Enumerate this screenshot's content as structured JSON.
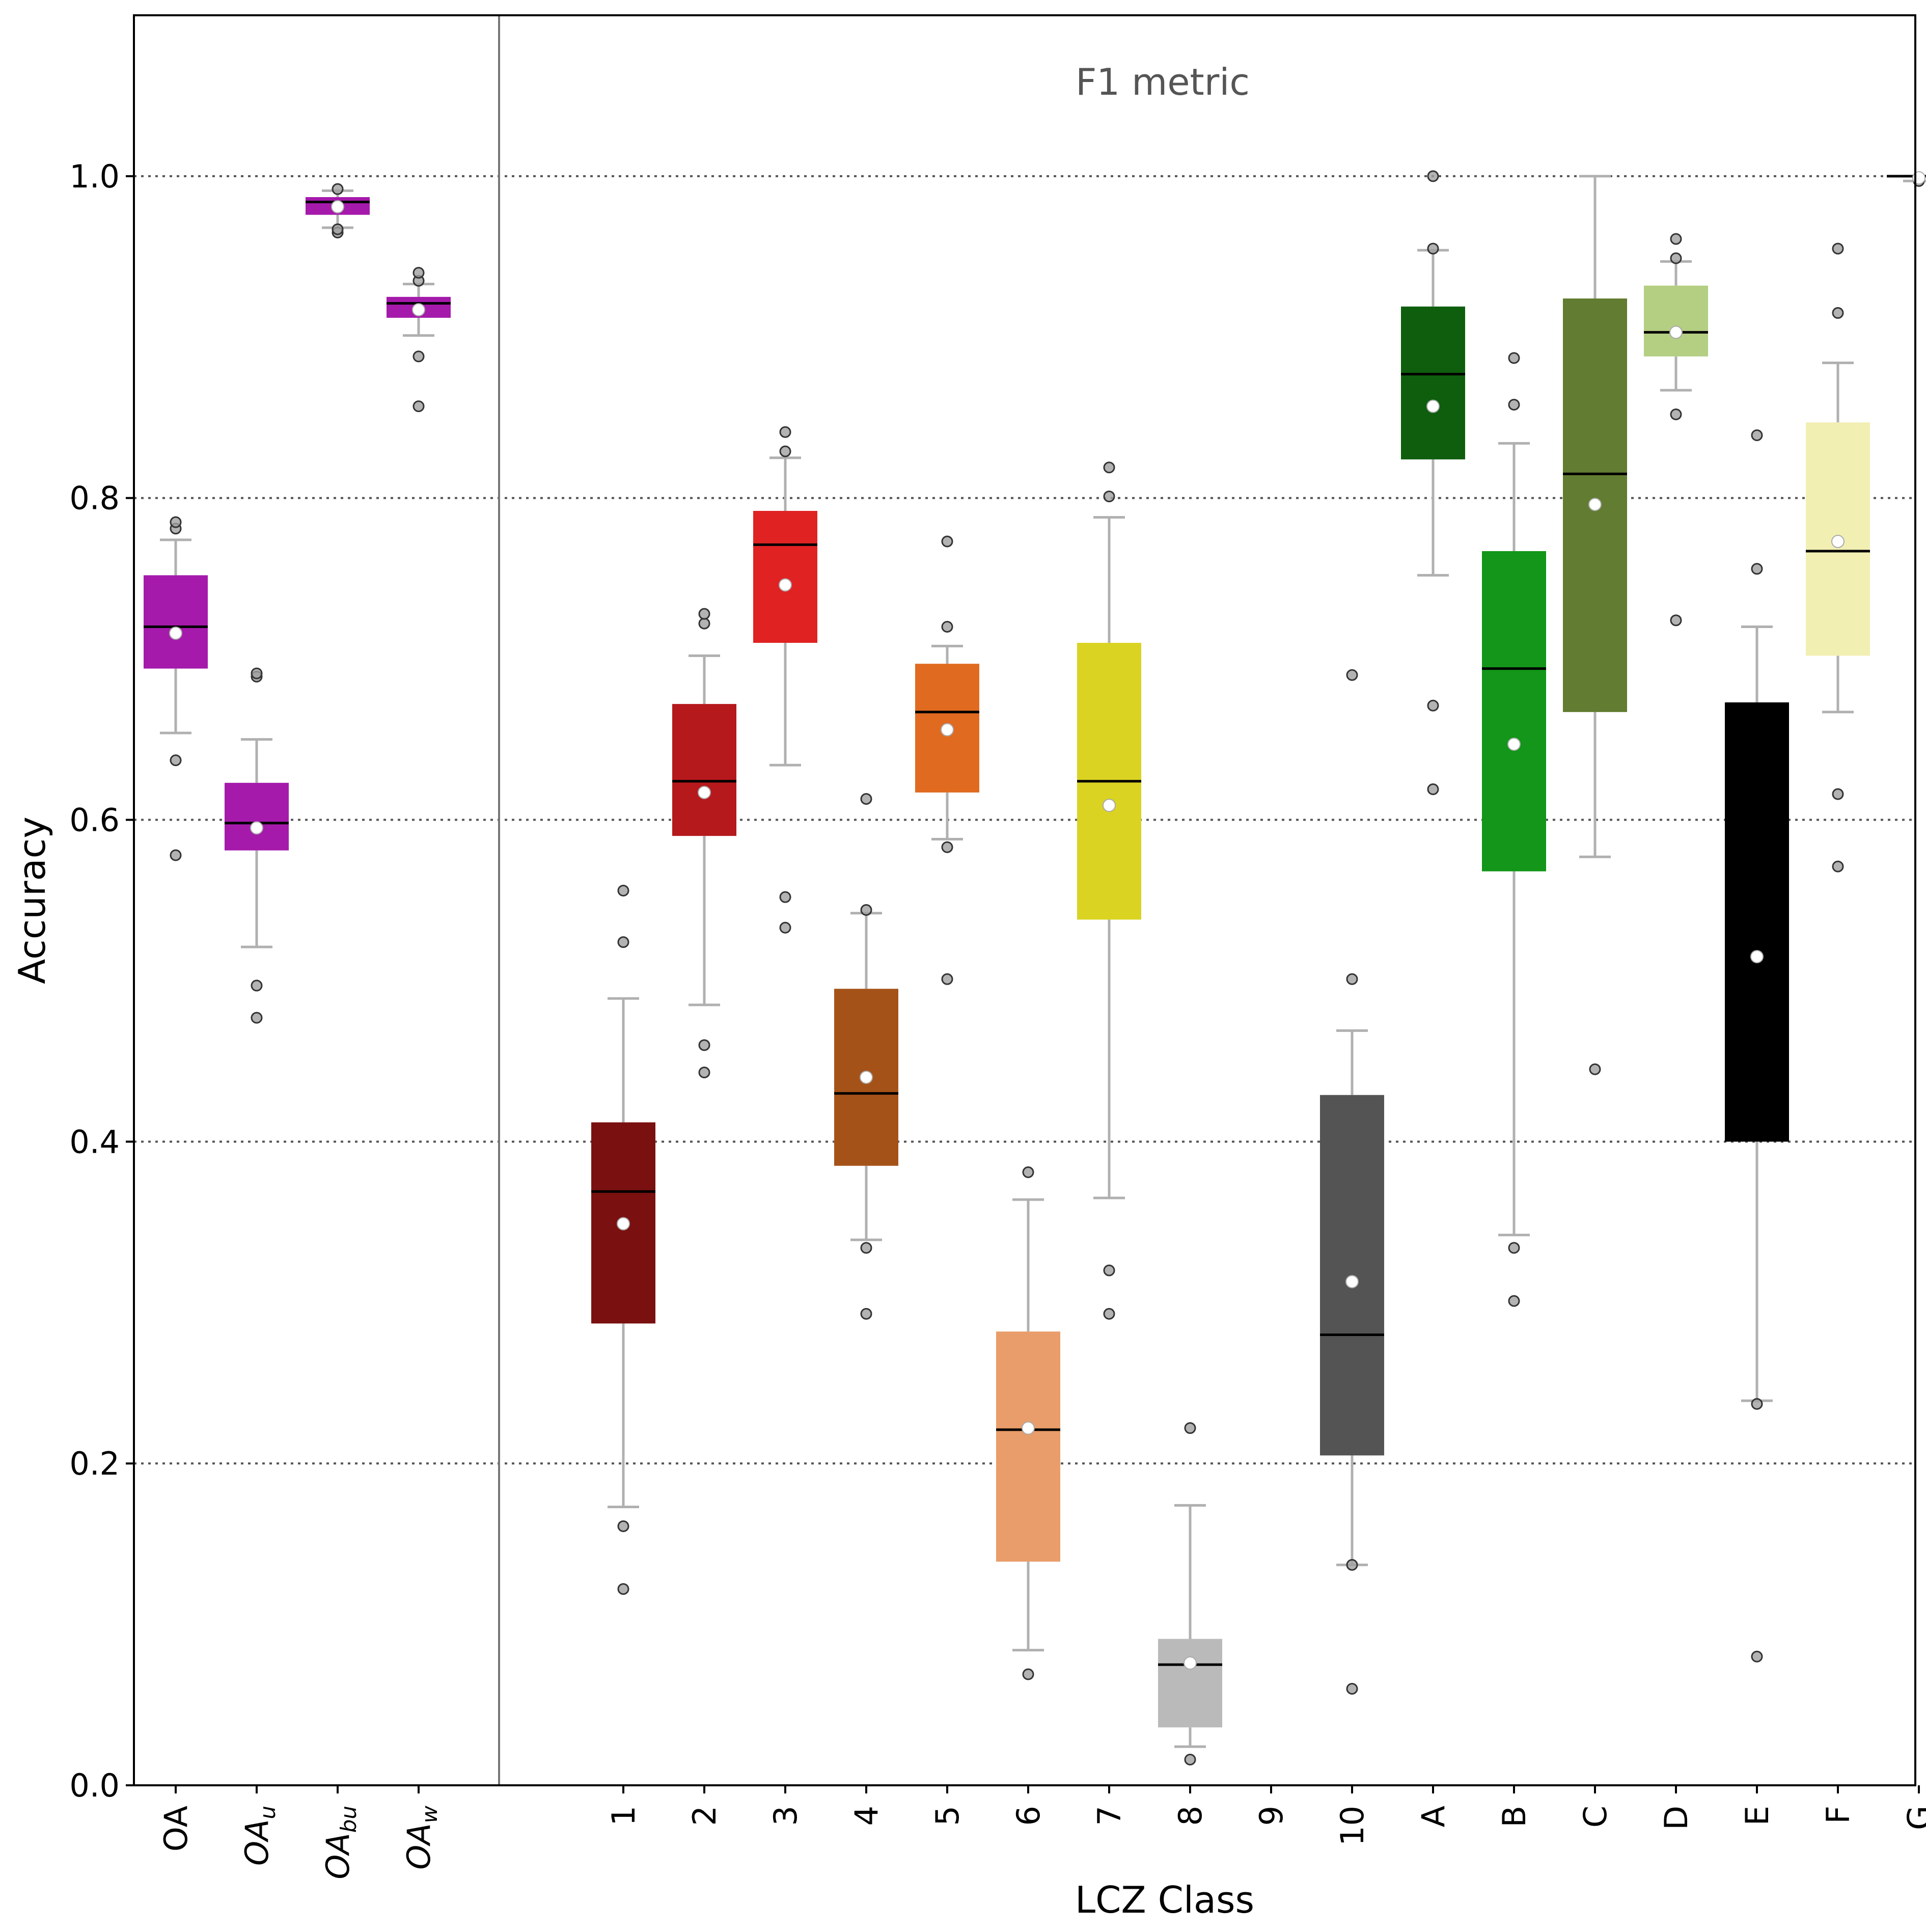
{
  "chart_data": {
    "type": "box",
    "xlabel": "LCZ Class",
    "ylabel": "Accuracy",
    "annotation": "F1 metric",
    "ylim": [
      0,
      1.1
    ],
    "yticks": [
      0.0,
      0.2,
      0.4,
      0.6,
      0.8,
      1.0
    ],
    "ytick_labels": [
      "0.0",
      "0.2",
      "0.4",
      "0.6",
      "0.8",
      "1.0"
    ],
    "grid": "horizontal dotted",
    "groups": [
      {
        "label": "OA",
        "sub": "",
        "color": "#a51aab",
        "q1": 0.694,
        "median": 0.72,
        "q3": 0.752,
        "whisker_low": 0.654,
        "whisker_high": 0.774,
        "mean": 0.716,
        "outliers": [
          0.578,
          0.637,
          0.781,
          0.785
        ]
      },
      {
        "label": "OA",
        "sub": "u",
        "color": "#a51aab",
        "q1": 0.581,
        "median": 0.598,
        "q3": 0.623,
        "whisker_low": 0.521,
        "whisker_high": 0.65,
        "mean": 0.595,
        "outliers": [
          0.477,
          0.497,
          0.689,
          0.691
        ]
      },
      {
        "label": "OA",
        "sub": "bu",
        "color": "#a51aab",
        "q1": 0.976,
        "median": 0.984,
        "q3": 0.987,
        "whisker_low": 0.968,
        "whisker_high": 0.991,
        "mean": 0.981,
        "outliers": [
          0.965,
          0.967,
          0.992
        ]
      },
      {
        "label": "OA",
        "sub": "w",
        "color": "#a51aab",
        "q1": 0.912,
        "median": 0.921,
        "q3": 0.925,
        "whisker_low": 0.901,
        "whisker_high": 0.933,
        "mean": 0.917,
        "outliers": [
          0.857,
          0.888,
          0.935,
          0.94
        ]
      },
      {
        "label": "1",
        "color": "#7a1010",
        "q1": 0.287,
        "median": 0.369,
        "q3": 0.412,
        "whisker_low": 0.173,
        "whisker_high": 0.489,
        "mean": 0.349,
        "outliers": [
          0.122,
          0.161,
          0.524,
          0.556
        ]
      },
      {
        "label": "2",
        "color": "#b5191c",
        "q1": 0.59,
        "median": 0.624,
        "q3": 0.672,
        "whisker_low": 0.485,
        "whisker_high": 0.702,
        "mean": 0.617,
        "outliers": [
          0.443,
          0.46,
          0.722,
          0.728
        ]
      },
      {
        "label": "3",
        "color": "#e02223",
        "q1": 0.71,
        "median": 0.771,
        "q3": 0.792,
        "whisker_low": 0.634,
        "whisker_high": 0.825,
        "mean": 0.746,
        "outliers": [
          0.533,
          0.552,
          0.829,
          0.841
        ]
      },
      {
        "label": "4",
        "color": "#a55219",
        "q1": 0.385,
        "median": 0.43,
        "q3": 0.495,
        "whisker_low": 0.339,
        "whisker_high": 0.542,
        "mean": 0.44,
        "outliers": [
          0.293,
          0.334,
          0.544,
          0.613
        ]
      },
      {
        "label": "5",
        "color": "#e06b20",
        "q1": 0.617,
        "median": 0.667,
        "q3": 0.697,
        "whisker_low": 0.588,
        "whisker_high": 0.708,
        "mean": 0.656,
        "outliers": [
          0.501,
          0.583,
          0.72,
          0.773
        ]
      },
      {
        "label": "6",
        "color": "#e99d6a",
        "q1": 0.139,
        "median": 0.221,
        "q3": 0.282,
        "whisker_low": 0.084,
        "whisker_high": 0.364,
        "mean": 0.222,
        "outliers": [
          0.069,
          0.381
        ]
      },
      {
        "label": "7",
        "color": "#dad322",
        "q1": 0.538,
        "median": 0.624,
        "q3": 0.71,
        "whisker_low": 0.365,
        "whisker_high": 0.788,
        "mean": 0.609,
        "outliers": [
          0.293,
          0.32,
          0.801,
          0.819
        ]
      },
      {
        "label": "8",
        "color": "#bababa",
        "q1": 0.036,
        "median": 0.075,
        "q3": 0.091,
        "whisker_low": 0.024,
        "whisker_high": 0.174,
        "mean": 0.076,
        "outliers": [
          0.016,
          0.222
        ]
      },
      {
        "label": "9",
        "color": "#666666",
        "q1": null,
        "median": null,
        "q3": null,
        "whisker_low": null,
        "whisker_high": null,
        "mean": null,
        "outliers": []
      },
      {
        "label": "10",
        "color": "#545454",
        "q1": 0.205,
        "median": 0.28,
        "q3": 0.429,
        "whisker_low": 0.137,
        "whisker_high": 0.469,
        "mean": 0.313,
        "outliers": [
          0.06,
          0.137,
          0.501,
          0.69
        ]
      },
      {
        "label": "A",
        "color": "#0e5e0e",
        "q1": 0.824,
        "median": 0.877,
        "q3": 0.919,
        "whisker_low": 0.752,
        "whisker_high": 0.954,
        "mean": 0.857,
        "outliers": [
          0.619,
          0.671,
          0.955,
          1.0
        ]
      },
      {
        "label": "B",
        "color": "#139619",
        "q1": 0.568,
        "median": 0.694,
        "q3": 0.767,
        "whisker_low": 0.342,
        "whisker_high": 0.834,
        "mean": 0.647,
        "outliers": [
          0.301,
          0.334,
          0.858,
          0.887
        ]
      },
      {
        "label": "C",
        "color": "#627c32",
        "q1": 0.667,
        "median": 0.815,
        "q3": 0.924,
        "whisker_low": 0.577,
        "whisker_high": 1.0,
        "mean": 0.796,
        "outliers": [
          0.445
        ]
      },
      {
        "label": "D",
        "color": "#b4ce82",
        "q1": 0.888,
        "median": 0.903,
        "q3": 0.932,
        "whisker_low": 0.867,
        "whisker_high": 0.947,
        "mean": 0.903,
        "outliers": [
          0.724,
          0.852,
          0.949,
          0.961
        ]
      },
      {
        "label": "E",
        "color": "#000000",
        "q1": 0.4,
        "median": 0.506,
        "q3": 0.673,
        "whisker_low": 0.239,
        "whisker_high": 0.72,
        "mean": 0.515,
        "outliers": [
          0.08,
          0.237,
          0.756,
          0.839
        ]
      },
      {
        "label": "F",
        "color": "#f2efb3",
        "q1": 0.702,
        "median": 0.767,
        "q3": 0.847,
        "whisker_low": 0.667,
        "whisker_high": 0.884,
        "mean": 0.773,
        "outliers": [
          0.571,
          0.616,
          0.915,
          0.955
        ]
      },
      {
        "label": "G",
        "color": "#eeeeee",
        "q1": 1.0,
        "median": 1.0,
        "q3": 1.0,
        "whisker_low": 0.997,
        "whisker_high": 1.0,
        "mean": 0.999,
        "outliers": [
          0.997
        ]
      }
    ]
  }
}
